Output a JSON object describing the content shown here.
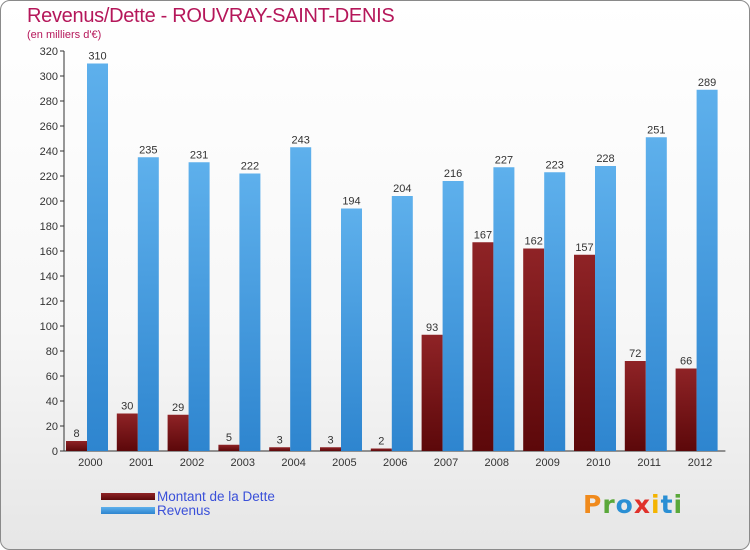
{
  "title": "Revenus/Dette - ROUVRAY-SAINT-DENIS",
  "subtitle": "(en milliers d'€)",
  "colors": {
    "dette": "#7a1416",
    "revenus": "#3a95dd",
    "title": "#b5175a",
    "legend_text": "#3a50d9"
  },
  "legend": {
    "dette_label": "Montant de la Dette",
    "revenus_label": "Revenus"
  },
  "logo": {
    "text": "Proxiti"
  },
  "chart_data": {
    "type": "bar",
    "title": "Revenus/Dette - ROUVRAY-SAINT-DENIS",
    "subtitle": "(en milliers d'€)",
    "categories": [
      "2000",
      "2001",
      "2002",
      "2003",
      "2004",
      "2005",
      "2006",
      "2007",
      "2008",
      "2009",
      "2010",
      "2011",
      "2012"
    ],
    "series": [
      {
        "name": "Montant de la Dette",
        "values": [
          8,
          30,
          29,
          5,
          3,
          3,
          2,
          93,
          167,
          162,
          157,
          72,
          66
        ]
      },
      {
        "name": "Revenus",
        "values": [
          310,
          235,
          231,
          222,
          243,
          194,
          204,
          216,
          227,
          223,
          228,
          251,
          289
        ]
      }
    ],
    "ylim": [
      0,
      320
    ],
    "yticks": [
      0,
      20,
      40,
      60,
      80,
      100,
      120,
      140,
      160,
      180,
      200,
      220,
      240,
      260,
      280,
      300,
      320
    ],
    "grid": false,
    "legend_position": "bottom-left"
  }
}
